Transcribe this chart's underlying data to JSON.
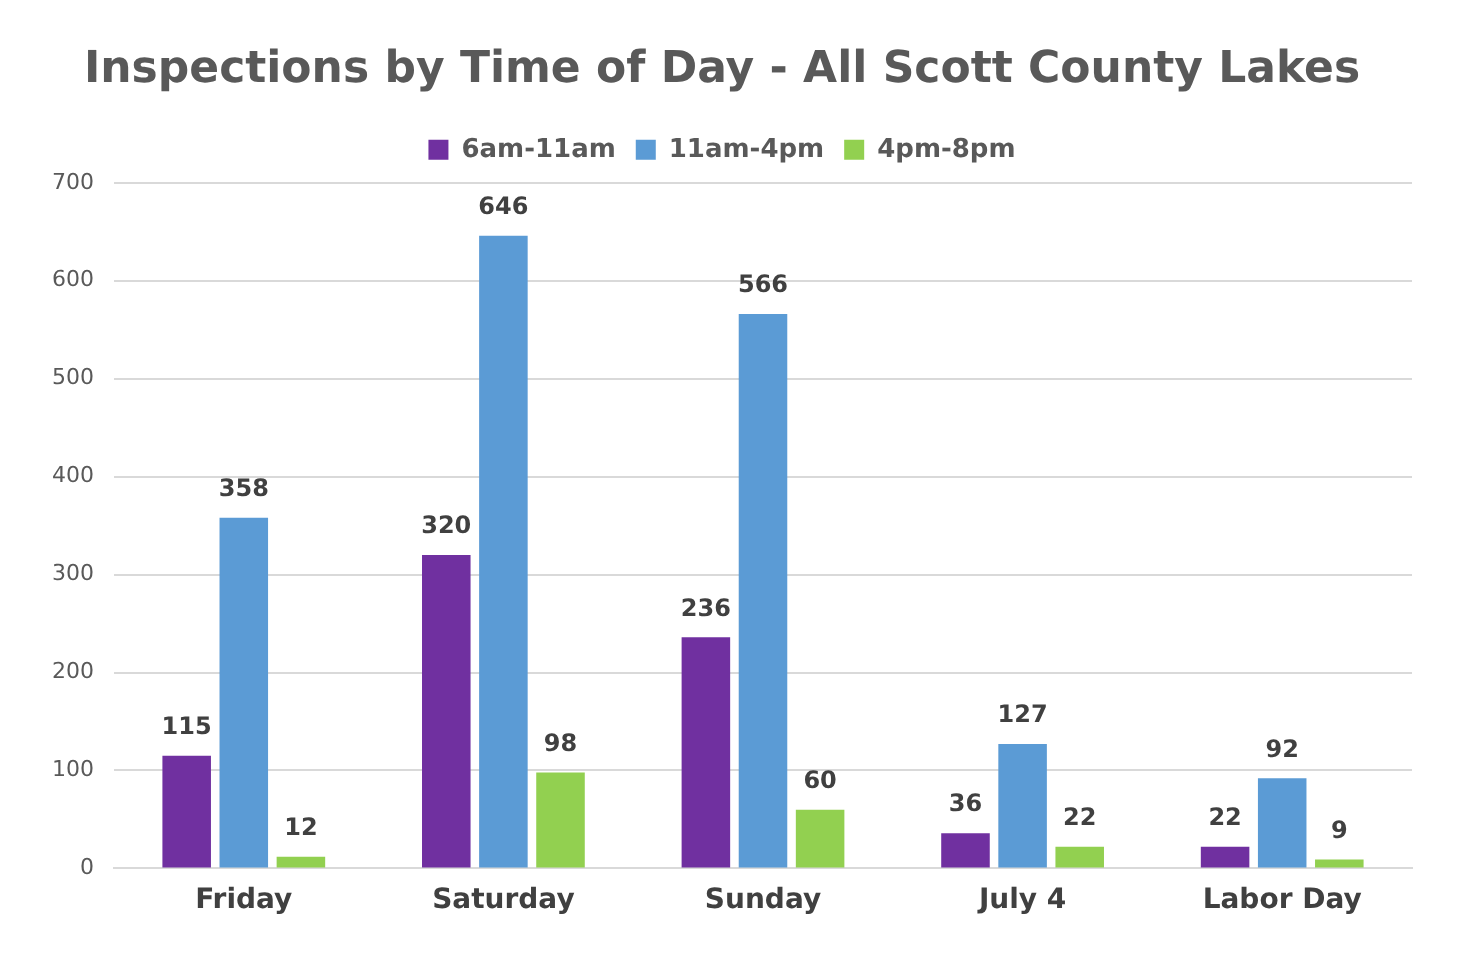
{
  "chart_data": {
    "type": "bar",
    "title": "Inspections by Time of Day - All Scott County Lakes",
    "categories": [
      "Friday",
      "Saturday",
      "Sunday",
      "July 4",
      "Labor Day"
    ],
    "series": [
      {
        "name": "6am-11am",
        "color": "#7030a0",
        "values": [
          115,
          320,
          236,
          36,
          22
        ]
      },
      {
        "name": "11am-4pm",
        "color": "#5b9bd5",
        "values": [
          358,
          646,
          566,
          127,
          92
        ]
      },
      {
        "name": "4pm-8pm",
        "color": "#92d050",
        "values": [
          12,
          98,
          60,
          22,
          9
        ]
      }
    ],
    "ylim": [
      0,
      700
    ],
    "yticks": [
      0,
      100,
      200,
      300,
      400,
      500,
      600,
      700
    ],
    "grid": "y",
    "legend": "top",
    "data_labels": true
  }
}
